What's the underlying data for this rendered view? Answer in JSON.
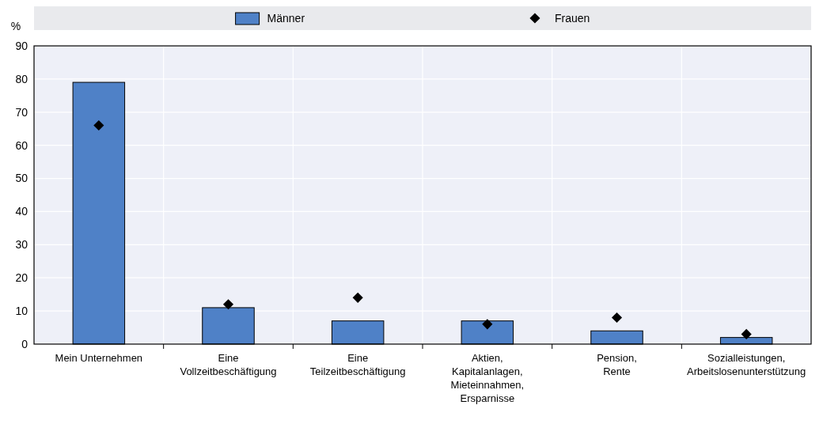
{
  "chart_data": {
    "type": "bar",
    "ylabel": "%",
    "categories": [
      "Mein Unternehmen",
      "Eine Vollzeitbeschäftigung",
      "Eine Teilzeitbeschäftigung",
      "Aktien, Kapitalanlagen, Mieteinnahmen, Ersparnisse",
      "Pension, Rente",
      "Sozialleistungen, Arbeitslosenunterstützung"
    ],
    "series": [
      {
        "name": "Männer",
        "color": "#4f81c7",
        "values": [
          79,
          11,
          7,
          7,
          4,
          2
        ]
      },
      {
        "name": "Frauen",
        "type": "scatter",
        "marker": "diamond",
        "color": "#000000",
        "values": [
          66,
          12,
          14,
          6,
          8,
          3
        ]
      }
    ],
    "ylim": [
      0,
      90
    ],
    "yticks": [
      0,
      10,
      20,
      30,
      40,
      50,
      60,
      70,
      80,
      90
    ],
    "grid": "y",
    "legend": "top"
  }
}
